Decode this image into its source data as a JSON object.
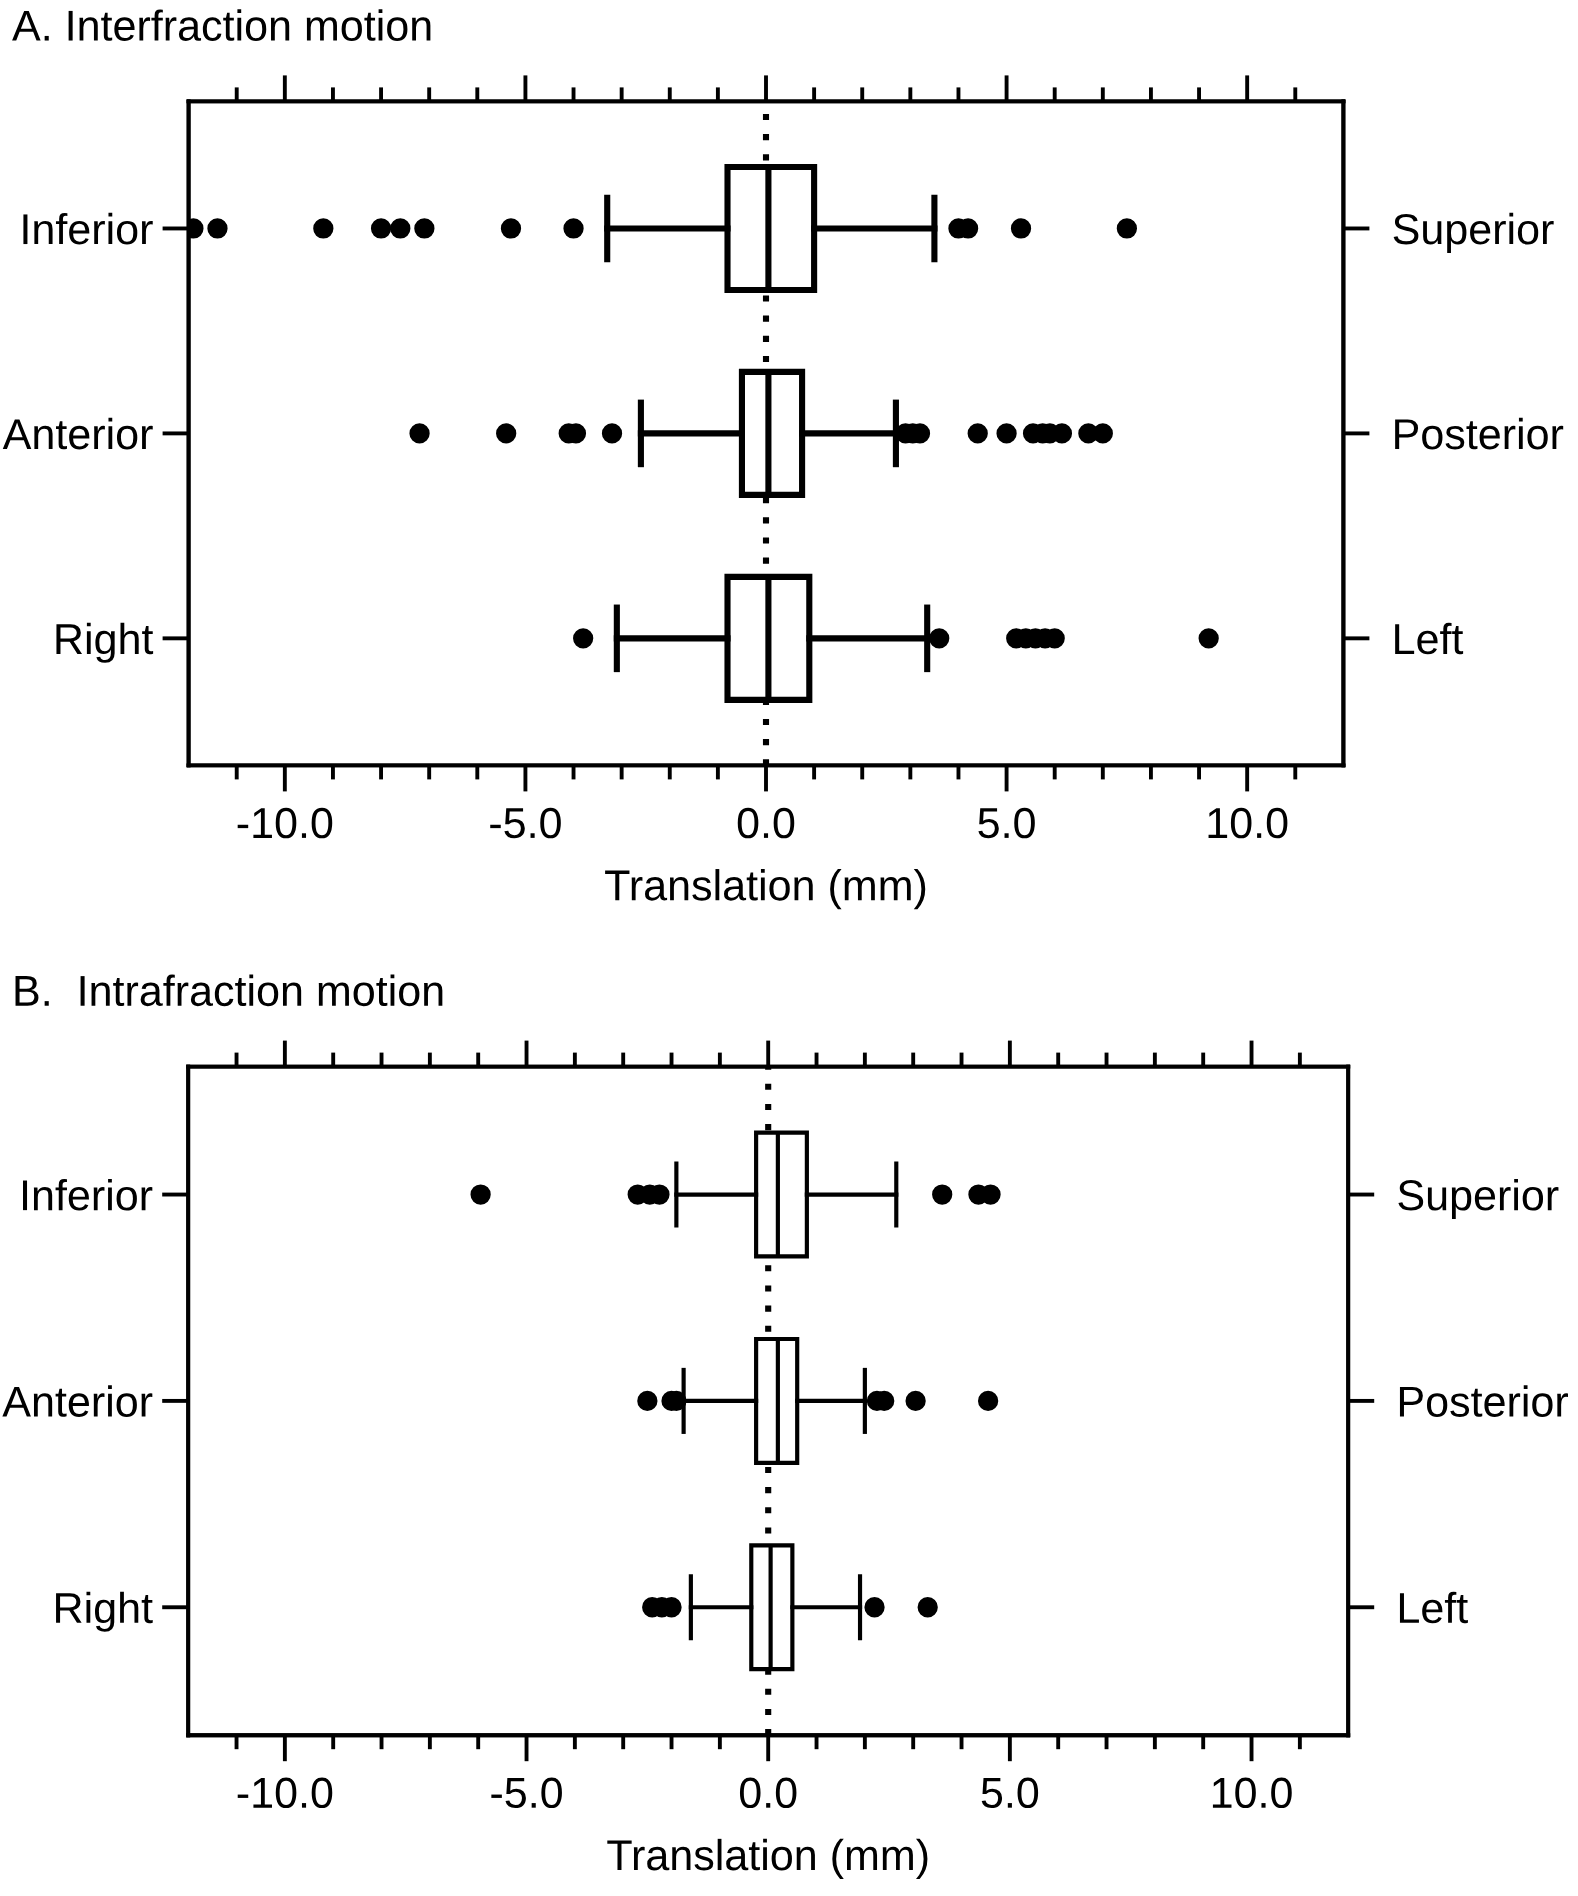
{
  "chart_data": [
    {
      "type": "box",
      "title": "A. Interfraction motion",
      "xlabel": "Translation (mm)",
      "orientation": "horizontal",
      "color": "#000000",
      "categories": [
        "Inferior",
        "Anterior",
        "Right"
      ],
      "y2_categories": [
        "Superior",
        "Posterior",
        "Left"
      ],
      "boxes": [
        {
          "low": -3.3,
          "q1": -0.8,
          "median": 0.05,
          "q3": 1.0,
          "high": 3.5,
          "outliers": [
            -11.9,
            -11.4,
            -9.2,
            -8.0,
            -7.6,
            -7.1,
            -5.3,
            -4.0,
            4.0,
            4.2,
            5.3,
            7.5
          ]
        },
        {
          "low": -2.6,
          "q1": -0.5,
          "median": 0.05,
          "q3": 0.75,
          "high": 2.7,
          "outliers": [
            -7.2,
            -5.4,
            -4.1,
            -3.95,
            -3.2,
            2.9,
            3.05,
            3.2,
            4.4,
            5.0,
            5.55,
            5.75,
            5.9,
            6.15,
            6.7,
            7.0
          ]
        },
        {
          "low": -3.1,
          "q1": -0.8,
          "median": 0.05,
          "q3": 0.9,
          "high": 3.35,
          "outliers": [
            -3.8,
            3.6,
            5.2,
            5.4,
            5.6,
            5.8,
            6.0,
            9.2
          ]
        }
      ],
      "xlim": [
        -12,
        12
      ],
      "xticks": [
        {
          "value": -11,
          "label": null
        },
        {
          "value": -10,
          "label": "-10.0"
        },
        {
          "value": -9,
          "label": null
        },
        {
          "value": -8,
          "label": null
        },
        {
          "value": -7,
          "label": null
        },
        {
          "value": -6,
          "label": null
        },
        {
          "value": -5,
          "label": "-5.0"
        },
        {
          "value": -4,
          "label": null
        },
        {
          "value": -3,
          "label": null
        },
        {
          "value": -2,
          "label": null
        },
        {
          "value": -1,
          "label": null
        },
        {
          "value": 0,
          "label": "0.0"
        },
        {
          "value": 1,
          "label": null
        },
        {
          "value": 2,
          "label": null
        },
        {
          "value": 3,
          "label": null
        },
        {
          "value": 4,
          "label": null
        },
        {
          "value": 5,
          "label": "5.0"
        },
        {
          "value": 6,
          "label": null
        },
        {
          "value": 7,
          "label": null
        },
        {
          "value": 8,
          "label": null
        },
        {
          "value": 9,
          "label": null
        },
        {
          "value": 10,
          "label": "10.0"
        },
        {
          "value": 11,
          "label": null
        }
      ],
      "ref_lines": [
        {
          "axis": "x",
          "value": 0,
          "color": "#000000",
          "line_style": "dotted"
        }
      ]
    },
    {
      "type": "box",
      "title": "B.  Intrafraction motion",
      "xlabel": "Translation (mm)",
      "orientation": "horizontal",
      "color": "#000000",
      "categories": [
        "Inferior",
        "Anterior",
        "Right"
      ],
      "y2_categories": [
        "Superior",
        "Posterior",
        "Left"
      ],
      "boxes": [
        {
          "low": -1.9,
          "q1": -0.25,
          "median": 0.2,
          "q3": 0.8,
          "high": 2.65,
          "outliers": [
            -5.95,
            -2.7,
            -2.45,
            -2.25,
            3.6,
            4.35,
            4.6
          ]
        },
        {
          "low": -1.75,
          "q1": -0.25,
          "median": 0.2,
          "q3": 0.6,
          "high": 2.0,
          "outliers": [
            -2.5,
            -2.0,
            -1.9,
            2.25,
            2.4,
            3.05,
            4.55
          ]
        },
        {
          "low": -1.6,
          "q1": -0.35,
          "median": 0.05,
          "q3": 0.5,
          "high": 1.9,
          "outliers": [
            -2.4,
            -2.2,
            -2.0,
            2.2,
            3.3
          ]
        }
      ],
      "xlim": [
        -12,
        12
      ],
      "xticks": [
        {
          "value": -11,
          "label": null
        },
        {
          "value": -10,
          "label": "-10.0"
        },
        {
          "value": -9,
          "label": null
        },
        {
          "value": -8,
          "label": null
        },
        {
          "value": -7,
          "label": null
        },
        {
          "value": -6,
          "label": null
        },
        {
          "value": -5,
          "label": "-5.0"
        },
        {
          "value": -4,
          "label": null
        },
        {
          "value": -3,
          "label": null
        },
        {
          "value": -2,
          "label": null
        },
        {
          "value": -1,
          "label": null
        },
        {
          "value": 0,
          "label": "0.0"
        },
        {
          "value": 1,
          "label": null
        },
        {
          "value": 2,
          "label": null
        },
        {
          "value": 3,
          "label": null
        },
        {
          "value": 4,
          "label": null
        },
        {
          "value": 5,
          "label": "5.0"
        },
        {
          "value": 6,
          "label": null
        },
        {
          "value": 7,
          "label": null
        },
        {
          "value": 8,
          "label": null
        },
        {
          "value": 9,
          "label": null
        },
        {
          "value": 10,
          "label": "10.0"
        },
        {
          "value": 11,
          "label": null
        }
      ],
      "ref_lines": [
        {
          "axis": "x",
          "value": 0,
          "color": "#000000",
          "line_style": "dotted"
        }
      ]
    }
  ]
}
